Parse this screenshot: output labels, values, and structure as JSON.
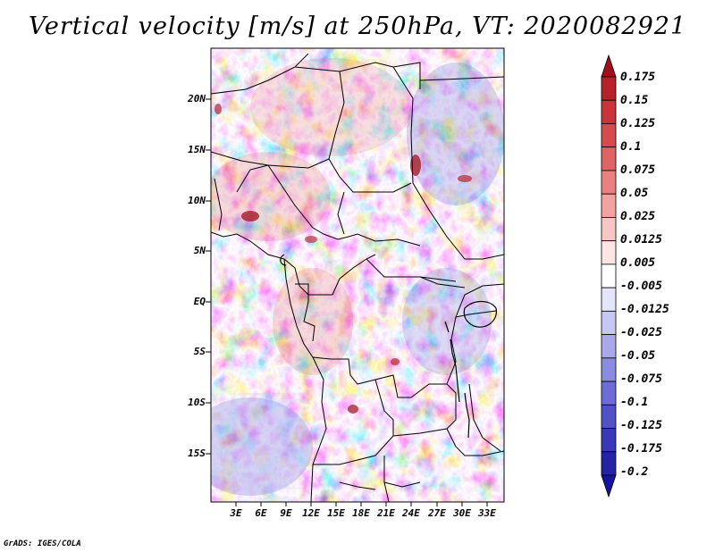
{
  "title": "Vertical velocity [m/s] at 250hPa, VT: 2020082921",
  "credit": "GrADS: IGES/COLA",
  "map": {
    "variable": "Vertical velocity",
    "units": "m/s",
    "level": "250hPa",
    "valid_time": "2020082921",
    "lat_ticks": [
      "20N",
      "15N",
      "10N",
      "5N",
      "EQ",
      "5S",
      "10S",
      "15S"
    ],
    "lon_ticks": [
      "3E",
      "6E",
      "9E",
      "12E",
      "15E",
      "18E",
      "21E",
      "24E",
      "27E",
      "30E",
      "33E"
    ]
  },
  "colorbar": {
    "labels": [
      "0.175",
      "0.15",
      "0.125",
      "0.1",
      "0.075",
      "0.05",
      "0.025",
      "0.0125",
      "0.005",
      "-0.005",
      "-0.0125",
      "-0.025",
      "-0.05",
      "-0.075",
      "-0.1",
      "-0.125",
      "-0.175",
      "-0.2"
    ],
    "colors": [
      "#a00f1a",
      "#b7222a",
      "#c8343a",
      "#d64b4e",
      "#e06463",
      "#e98180",
      "#f2a3a1",
      "#f8c6c4",
      "#fde5e4",
      "#ffffff",
      "#e4e4fb",
      "#c7c7f4",
      "#a8a8ea",
      "#8b8be0",
      "#6d6dd5",
      "#5252c8",
      "#3838b8",
      "#2323a6",
      "#1414a0"
    ]
  },
  "colors": {
    "positive": "#e06463",
    "negative": "#6d6dd5",
    "border": "#000000"
  }
}
